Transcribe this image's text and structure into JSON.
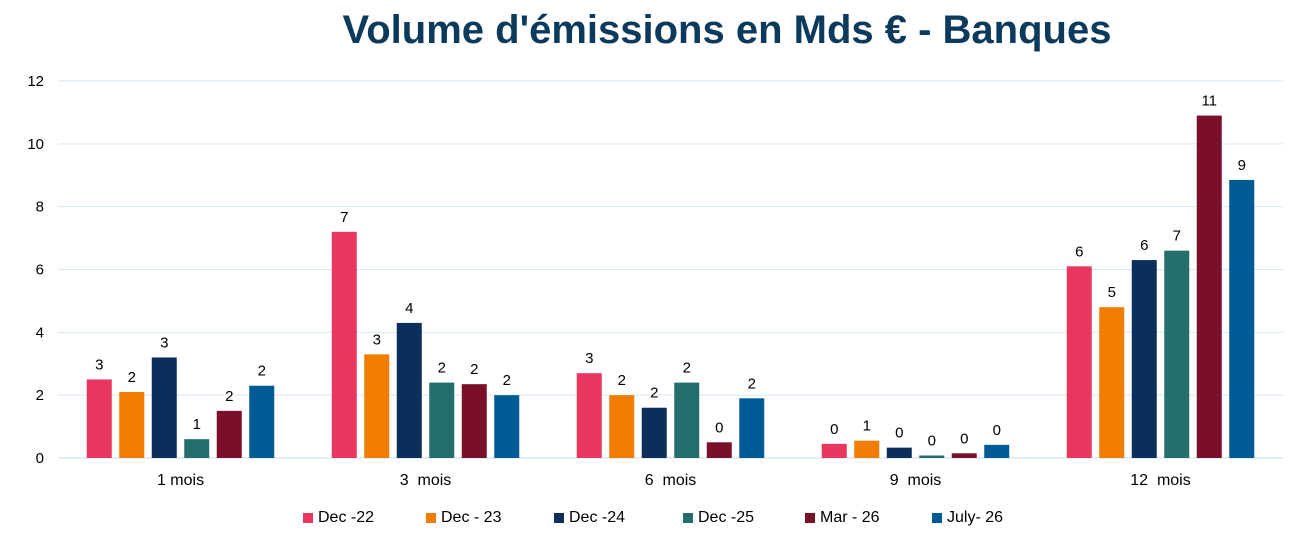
{
  "chart_data": {
    "type": "bar",
    "title": "Volume d'émissions en Mds € - Banques",
    "xlabel": "",
    "ylabel": "",
    "ylim": [
      0,
      12
    ],
    "yticks": [
      0,
      2,
      4,
      6,
      8,
      10,
      12
    ],
    "grid": true,
    "legend_position": "bottom",
    "categories": [
      "1 mois",
      "3  mois",
      "6  mois",
      "9  mois",
      "12  mois"
    ],
    "series": [
      {
        "name": "Dec -22",
        "color": "#e8365f",
        "values": [
          2.5,
          7.2,
          2.7,
          0.45,
          6.1
        ],
        "labels": [
          "3",
          "7",
          "3",
          "0",
          "6"
        ]
      },
      {
        "name": "Dec - 23",
        "color": "#f07d00",
        "values": [
          2.1,
          3.3,
          2.0,
          0.55,
          4.8
        ],
        "labels": [
          "2",
          "3",
          "2",
          "1",
          "5"
        ]
      },
      {
        "name": "Dec -24",
        "color": "#0b2e5a",
        "values": [
          3.2,
          4.3,
          1.6,
          0.33,
          6.3
        ],
        "labels": [
          "3",
          "4",
          "2",
          "0",
          "6"
        ]
      },
      {
        "name": "Dec -25",
        "color": "#246e6c",
        "values": [
          0.6,
          2.4,
          2.4,
          0.08,
          6.6
        ],
        "labels": [
          "1",
          "2",
          "2",
          "0",
          "7"
        ]
      },
      {
        "name": "Mar - 26",
        "color": "#7a0f2a",
        "values": [
          1.5,
          2.35,
          0.5,
          0.15,
          10.9
        ],
        "labels": [
          "2",
          "2",
          "0",
          "0",
          "11"
        ]
      },
      {
        "name": "July- 26",
        "color": "#005b94",
        "values": [
          2.3,
          2.0,
          1.9,
          0.42,
          8.85
        ],
        "labels": [
          "2",
          "2",
          "2",
          "0",
          "9"
        ]
      }
    ]
  }
}
